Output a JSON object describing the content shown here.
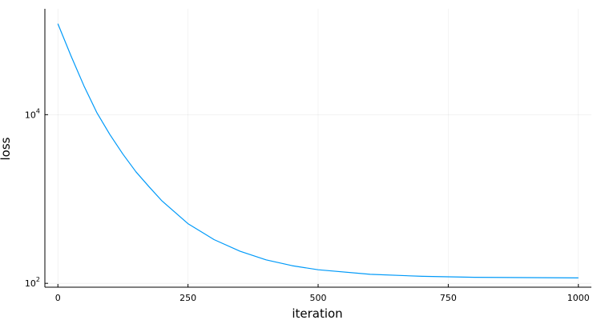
{
  "chart_data": {
    "type": "line",
    "title": "",
    "xlabel": "iteration",
    "ylabel": "loss",
    "xlim": [
      -25,
      1025
    ],
    "ylim": [
      90,
      180000
    ],
    "yscale": "log",
    "grid": true,
    "legend": "none",
    "x_ticks": [
      {
        "value": 0,
        "label": "0"
      },
      {
        "value": 250,
        "label": "250"
      },
      {
        "value": 500,
        "label": "500"
      },
      {
        "value": 750,
        "label": "750"
      },
      {
        "value": 1000,
        "label": "1000"
      }
    ],
    "y_ticks": [
      {
        "value": 100,
        "base": "10",
        "exp": "2"
      },
      {
        "value": 10000,
        "base": "10",
        "exp": "4"
      }
    ],
    "series": [
      {
        "color": "#009af9",
        "x": [
          0,
          25,
          50,
          75,
          100,
          125,
          150,
          175,
          200,
          250,
          300,
          350,
          400,
          450,
          500,
          600,
          700,
          800,
          900,
          1000
        ],
        "y": [
          120000,
          50000,
          22000,
          10500,
          5800,
          3400,
          2100,
          1400,
          950,
          510,
          330,
          240,
          190,
          162,
          145,
          128,
          121,
          118,
          117,
          116
        ]
      }
    ]
  }
}
